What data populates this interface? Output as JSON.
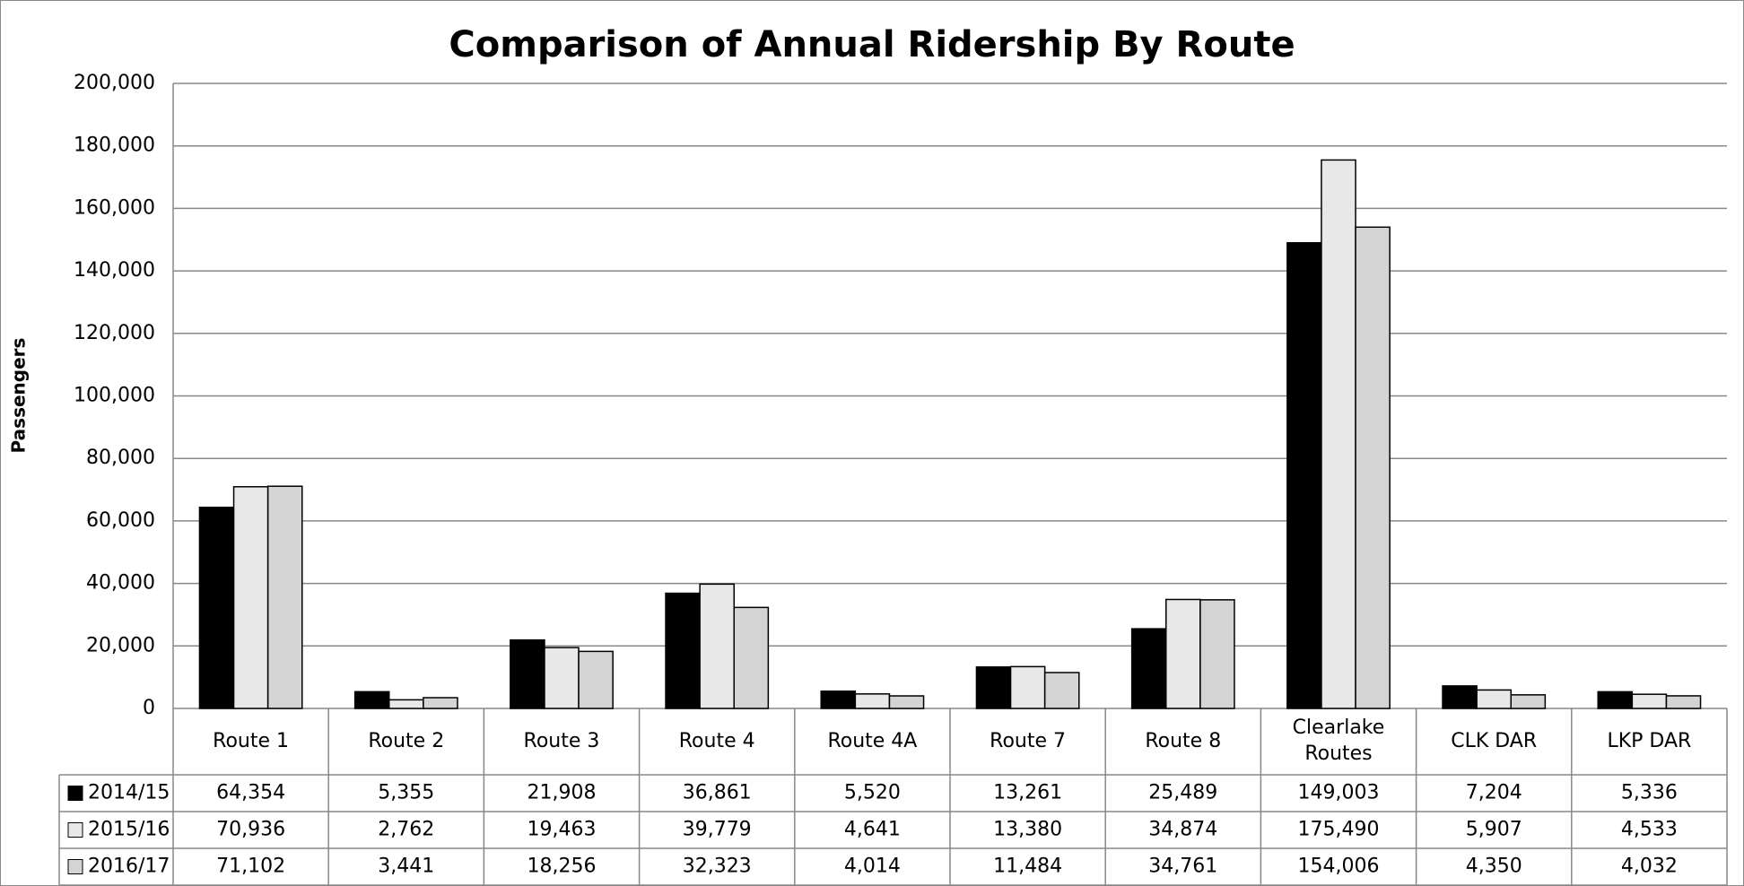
{
  "chart_data": {
    "type": "bar",
    "title": "Comparison of Annual Ridership By Route",
    "y_label": "Passengers",
    "categories": [
      "Route 1",
      "Route 2",
      "Route 3",
      "Route 4",
      "Route 4A",
      "Route 7",
      "Route 8",
      "Clearlake Routes",
      "CLK DAR",
      "LKP DAR"
    ],
    "series": [
      {
        "name": "2014/15",
        "color": "#000000",
        "values": [
          64354,
          5355,
          21908,
          36861,
          5520,
          13261,
          25489,
          149003,
          7204,
          5336
        ],
        "value_labels": [
          "64,354",
          "5,355",
          "21,908",
          "36,861",
          "5,520",
          "13,261",
          "25,489",
          "149,003",
          "7,204",
          "5,336"
        ]
      },
      {
        "name": "2015/16",
        "color": "#e8e8e8",
        "values": [
          70936,
          2762,
          19463,
          39779,
          4641,
          13380,
          34874,
          175490,
          5907,
          4533
        ],
        "value_labels": [
          "70,936",
          "2,762",
          "19,463",
          "39,779",
          "4,641",
          "13,380",
          "34,874",
          "175,490",
          "5,907",
          "4,533"
        ]
      },
      {
        "name": "2016/17",
        "color": "#d4d4d4",
        "values": [
          71102,
          3441,
          18256,
          32323,
          4014,
          11484,
          34761,
          154006,
          4350,
          4032
        ],
        "value_labels": [
          "71,102",
          "3,441",
          "18,256",
          "32,323",
          "4,014",
          "11,484",
          "34,761",
          "154,006",
          "4,350",
          "4,032"
        ]
      }
    ],
    "ylim": [
      0,
      200000
    ],
    "yticks": [
      0,
      {
        "value": 20000,
        "label": "20,000"
      },
      {
        "value": 40000,
        "label": "40,000"
      },
      {
        "value": 60000,
        "label": "60,000"
      },
      {
        "value": 80000,
        "label": "80,000"
      },
      {
        "value": 100000,
        "label": "100,000"
      },
      {
        "value": 120000,
        "label": "120,000"
      },
      {
        "value": 140000,
        "label": "140,000"
      },
      {
        "value": 160000,
        "label": "160,000"
      },
      {
        "value": 180000,
        "label": "180,000"
      },
      {
        "value": 200000,
        "label": "200,000"
      }
    ],
    "grid": true,
    "legend": "table"
  }
}
